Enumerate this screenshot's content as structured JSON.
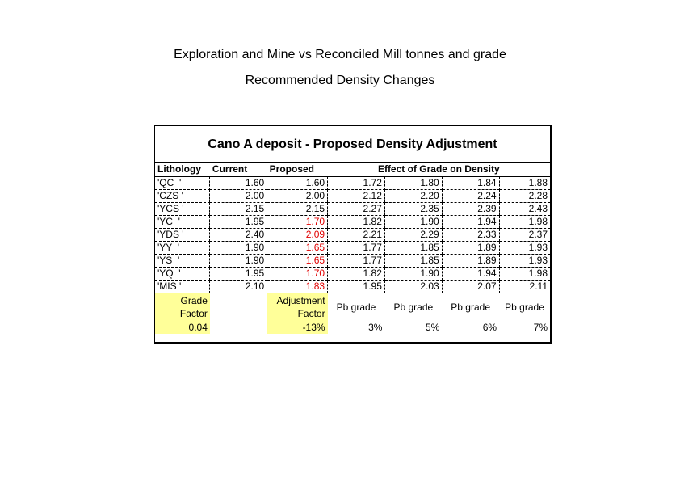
{
  "titles": {
    "line1": "Exploration and Mine vs Reconciled Mill tonnes and grade",
    "line2": "Recommended Density Changes"
  },
  "sheet": {
    "title": "Cano A deposit - Proposed Density Adjustment",
    "headers": {
      "lithology": "Lithology",
      "current": "Current",
      "proposed": "Proposed",
      "effect": "Effect of Grade on Density"
    },
    "rows": [
      {
        "lith": "'QC  '",
        "current": "1.60",
        "proposed": "1.60",
        "proposed_red": false,
        "g": [
          "1.72",
          "1.80",
          "1.84",
          "1.88"
        ]
      },
      {
        "lith": "'CZS '",
        "current": "2.00",
        "proposed": "2.00",
        "proposed_red": false,
        "g": [
          "2.12",
          "2.20",
          "2.24",
          "2.28"
        ]
      },
      {
        "lith": "'YCS '",
        "current": "2.15",
        "proposed": "2.15",
        "proposed_red": false,
        "g": [
          "2.27",
          "2.35",
          "2.39",
          "2.43"
        ]
      },
      {
        "lith": "'YC  '",
        "current": "1.95",
        "proposed": "1.70",
        "proposed_red": true,
        "g": [
          "1.82",
          "1.90",
          "1.94",
          "1.98"
        ]
      },
      {
        "lith": "'YDS '",
        "current": "2.40",
        "proposed": "2.09",
        "proposed_red": true,
        "g": [
          "2.21",
          "2.29",
          "2.33",
          "2.37"
        ]
      },
      {
        "lith": "'YY  '",
        "current": "1.90",
        "proposed": "1.65",
        "proposed_red": true,
        "g": [
          "1.77",
          "1.85",
          "1.89",
          "1.93"
        ]
      },
      {
        "lith": "'YS  '",
        "current": "1.90",
        "proposed": "1.65",
        "proposed_red": true,
        "g": [
          "1.77",
          "1.85",
          "1.89",
          "1.93"
        ]
      },
      {
        "lith": "'YQ  '",
        "current": "1.95",
        "proposed": "1.70",
        "proposed_red": true,
        "g": [
          "1.82",
          "1.90",
          "1.94",
          "1.98"
        ]
      },
      {
        "lith": "'MIS '",
        "current": "2.10",
        "proposed": "1.83",
        "proposed_red": true,
        "g": [
          "1.95",
          "2.03",
          "2.07",
          "2.11"
        ]
      }
    ],
    "footer": {
      "grade_factor_line1": "Grade",
      "grade_factor_line2": "Factor",
      "grade_factor_value": "0.04",
      "adjustment_factor_line1": "Adjustment",
      "adjustment_factor_line2": "Factor",
      "adjustment_factor_value": "-13%",
      "pb_labels": [
        "Pb grade",
        "Pb grade",
        "Pb grade",
        "Pb grade"
      ],
      "pb_values": [
        "3%",
        "5%",
        "6%",
        "7%"
      ]
    }
  },
  "colors": {
    "highlight": "#ffff99",
    "red_text": "#e00000"
  }
}
